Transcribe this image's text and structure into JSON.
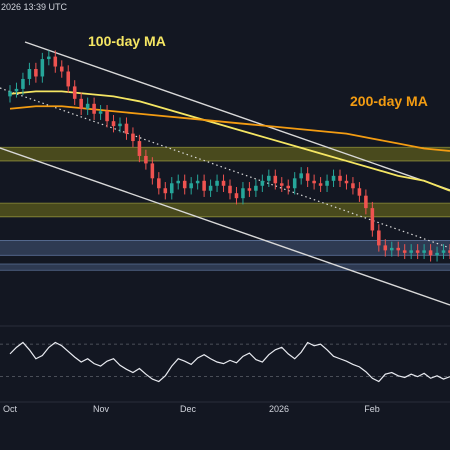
{
  "header": {
    "datetime_fragment": ", 2026 13:39 UTC"
  },
  "colors": {
    "background": "#131722",
    "candle_up": "#26a69a",
    "candle_down": "#ef5350",
    "ma100": "#f5e663",
    "ma200": "#f39c12",
    "channel_line": "#d9d9d9",
    "resistance_zone": "#5c5c1c",
    "support_zone": "#3a4a66",
    "rsi_line": "#e8eaf0"
  },
  "chart_data": {
    "type": "line",
    "title": "",
    "xlabel": "",
    "ylabel": "",
    "x_ticks": [
      "Oct",
      "Nov",
      "Dec",
      "2026",
      "Feb"
    ],
    "grid": false,
    "annotations": [
      {
        "label": "100-day MA",
        "kind": "moving-average",
        "color": "#f5e663"
      },
      {
        "label": "200-day MA",
        "kind": "moving-average",
        "color": "#f39c12"
      }
    ],
    "zones": [
      {
        "kind": "resistance",
        "color": "#5c5c1c",
        "range": [
          0.58,
          0.635
        ]
      },
      {
        "kind": "resistance",
        "color": "#5c5c1c",
        "range": [
          0.355,
          0.41
        ]
      },
      {
        "kind": "support",
        "color": "#3a4a66",
        "range": [
          0.2,
          0.26
        ]
      },
      {
        "kind": "support",
        "color": "#3a4a66",
        "range": [
          0.14,
          0.165
        ]
      }
    ],
    "series": [
      {
        "values": [
          0.86,
          0.87,
          0.91,
          0.95,
          0.92,
          0.99,
          1.0,
          0.96,
          0.94,
          0.88,
          0.83,
          0.79,
          0.81,
          0.77,
          0.78,
          0.74,
          0.72,
          0.73,
          0.69,
          0.66,
          0.6,
          0.57,
          0.51,
          0.47,
          0.45,
          0.49,
          0.5,
          0.47,
          0.49,
          0.5,
          0.46,
          0.48,
          0.5,
          0.48,
          0.45,
          0.43,
          0.47,
          0.46,
          0.48,
          0.5,
          0.52,
          0.49,
          0.48,
          0.47,
          0.51,
          0.53,
          0.5,
          0.49,
          0.48,
          0.5,
          0.52,
          0.5,
          0.49,
          0.47,
          0.44,
          0.39,
          0.3,
          0.24,
          0.22,
          0.23,
          0.22,
          0.21,
          0.22,
          0.21,
          0.22,
          0.2,
          0.21,
          0.22,
          0.21
        ]
      },
      {
        "values": [
          0.85,
          0.86,
          0.86,
          0.85,
          0.84,
          0.82,
          0.79,
          0.76,
          0.73,
          0.7,
          0.67,
          0.64,
          0.61,
          0.58,
          0.55,
          0.52,
          0.5,
          0.46
        ]
      },
      {
        "values": [
          0.79,
          0.8,
          0.8,
          0.79,
          0.78,
          0.77,
          0.76,
          0.75,
          0.74,
          0.73,
          0.72,
          0.71,
          0.7,
          0.69,
          0.67,
          0.65,
          0.63,
          0.62
        ]
      },
      {
        "values": [
          58,
          66,
          72,
          63,
          52,
          56,
          66,
          72,
          68,
          61,
          54,
          48,
          52,
          46,
          43,
          49,
          52,
          44,
          39,
          35,
          40,
          33,
          27,
          24,
          31,
          43,
          52,
          49,
          45,
          53,
          57,
          52,
          48,
          46,
          50,
          47,
          55,
          59,
          51,
          48,
          57,
          63,
          66,
          58,
          52,
          60,
          72,
          68,
          70,
          63,
          55,
          52,
          49,
          45,
          42,
          36,
          28,
          24,
          33,
          35,
          31,
          29,
          33,
          30,
          34,
          28,
          31,
          27,
          30
        ]
      }
    ]
  }
}
